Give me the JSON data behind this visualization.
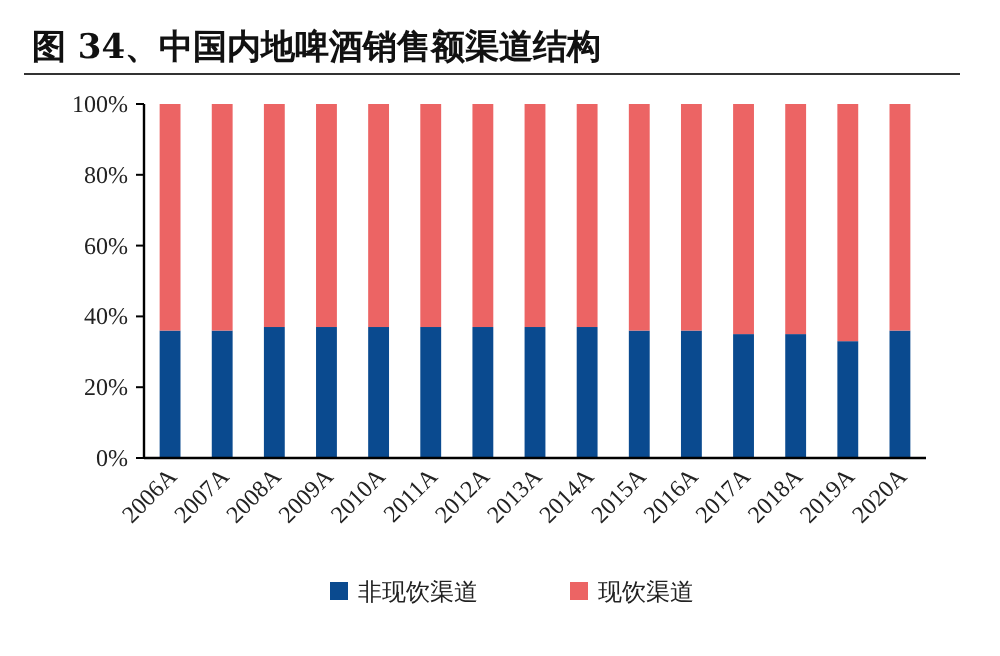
{
  "chart_data": {
    "type": "bar",
    "stacked": true,
    "title": "图 34、中国内地啤酒销售额渠道结构",
    "categories": [
      "2006A",
      "2007A",
      "2008A",
      "2009A",
      "2010A",
      "2011A",
      "2012A",
      "2013A",
      "2014A",
      "2015A",
      "2016A",
      "2017A",
      "2018A",
      "2019A",
      "2020A"
    ],
    "series": [
      {
        "name": "非现饮渠道",
        "color": "#0a4a8f",
        "values": [
          36,
          36,
          37,
          37,
          37,
          37,
          37,
          37,
          37,
          36,
          36,
          35,
          35,
          33,
          36
        ]
      },
      {
        "name": "现饮渠道",
        "color": "#ec6464",
        "values": [
          64,
          64,
          63,
          63,
          63,
          63,
          63,
          63,
          63,
          64,
          64,
          65,
          65,
          67,
          64
        ]
      }
    ],
    "ylim": [
      0,
      100
    ],
    "yticks": [
      {
        "value": 0,
        "label": "0%"
      },
      {
        "value": 20,
        "label": "20%"
      },
      {
        "value": 40,
        "label": "40%"
      },
      {
        "value": 60,
        "label": "60%"
      },
      {
        "value": 80,
        "label": "80%"
      },
      {
        "value": 100,
        "label": "100%"
      }
    ],
    "legend": "bottom",
    "grid": false
  }
}
